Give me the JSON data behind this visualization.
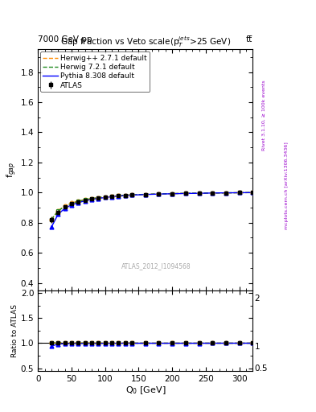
{
  "title": "Gap fraction vs Veto scale(p$_T^{jets}$>25 GeV)",
  "xlabel": "Q$_0$ [GeV]",
  "ylabel_main": "f$_{gap}$",
  "ylabel_ratio": "Ratio to ATLAS",
  "header_left": "7000 GeV pp",
  "header_right": "tt̅",
  "watermark": "ATLAS_2012_I1094568",
  "rivet_text": "Rivet 3.1.10, ≥ 100k events",
  "inspire_text": "mcplots.cern.ch [arXiv:1306.3436]",
  "xlim": [
    0,
    320
  ],
  "ylim_main": [
    0.35,
    1.95
  ],
  "ylim_ratio": [
    0.45,
    2.05
  ],
  "yticks_main": [
    0.4,
    0.6,
    0.8,
    1.0,
    1.2,
    1.4,
    1.6,
    1.8
  ],
  "yticks_ratio": [
    0.5,
    1.0,
    1.5,
    2.0
  ],
  "Q0_data": [
    20,
    30,
    40,
    50,
    60,
    70,
    80,
    90,
    100,
    110,
    120,
    130,
    140,
    160,
    180,
    200,
    220,
    240,
    260,
    280,
    300,
    320
  ],
  "atlas_vals": [
    0.82,
    0.87,
    0.905,
    0.925,
    0.94,
    0.95,
    0.96,
    0.965,
    0.97,
    0.975,
    0.978,
    0.981,
    0.984,
    0.988,
    0.991,
    0.993,
    0.995,
    0.996,
    0.997,
    0.998,
    0.999,
    1.0
  ],
  "atlas_err": [
    0.02,
    0.015,
    0.012,
    0.01,
    0.008,
    0.007,
    0.006,
    0.005,
    0.005,
    0.004,
    0.004,
    0.004,
    0.003,
    0.003,
    0.003,
    0.002,
    0.002,
    0.002,
    0.002,
    0.001,
    0.001,
    0.001
  ],
  "herwig_pp_vals": [
    0.82,
    0.88,
    0.91,
    0.93,
    0.943,
    0.953,
    0.96,
    0.966,
    0.971,
    0.975,
    0.979,
    0.982,
    0.985,
    0.988,
    0.991,
    0.993,
    0.995,
    0.996,
    0.997,
    0.998,
    0.999,
    1.0
  ],
  "herwig_72_vals": [
    0.82,
    0.878,
    0.908,
    0.928,
    0.942,
    0.952,
    0.96,
    0.966,
    0.971,
    0.975,
    0.979,
    0.982,
    0.985,
    0.988,
    0.991,
    0.993,
    0.995,
    0.996,
    0.997,
    0.998,
    0.999,
    1.0
  ],
  "pythia_vals": [
    0.77,
    0.855,
    0.895,
    0.918,
    0.933,
    0.945,
    0.954,
    0.961,
    0.967,
    0.972,
    0.976,
    0.98,
    0.983,
    0.987,
    0.99,
    0.992,
    0.994,
    0.995,
    0.997,
    0.998,
    0.999,
    1.0
  ],
  "color_atlas": "#000000",
  "color_herwig_pp": "#ff8c00",
  "color_herwig_72": "#228b22",
  "color_pythia": "#0000ff",
  "legend_labels": [
    "ATLAS",
    "Herwig++ 2.7.1 default",
    "Herwig 7.2.1 default",
    "Pythia 8.308 default"
  ]
}
